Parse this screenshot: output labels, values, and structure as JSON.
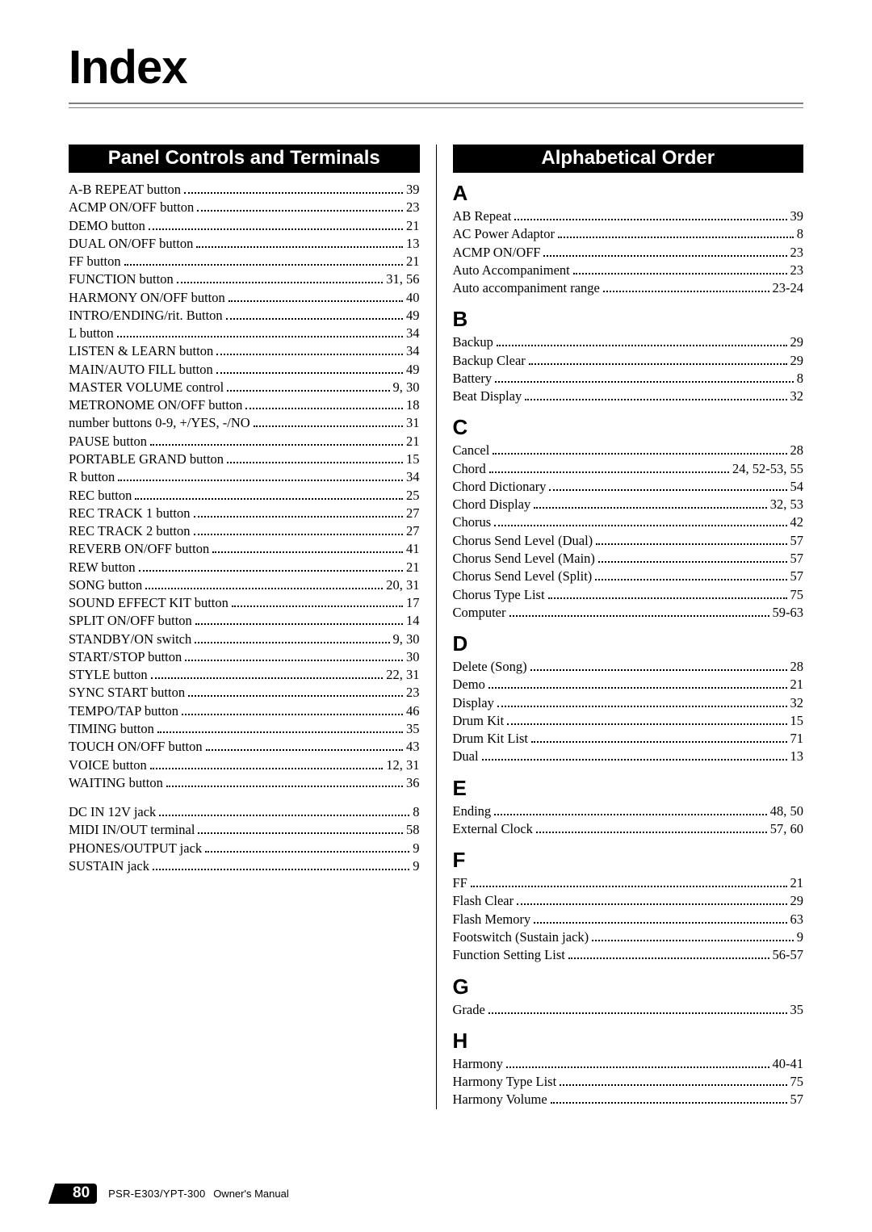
{
  "title": "Index",
  "footer": {
    "pageNumber": "80",
    "model": "PSR-E303/YPT-300",
    "manual": "Owner's Manual"
  },
  "left": {
    "header": "Panel Controls and Terminals",
    "group1": [
      {
        "term": "A-B REPEAT button",
        "page": "39"
      },
      {
        "term": "ACMP ON/OFF button",
        "page": "23"
      },
      {
        "term": "DEMO button",
        "page": "21"
      },
      {
        "term": "DUAL ON/OFF button",
        "page": "13"
      },
      {
        "term": "FF button",
        "page": "21"
      },
      {
        "term": "FUNCTION button",
        "page": "31, 56"
      },
      {
        "term": "HARMONY ON/OFF button",
        "page": "40"
      },
      {
        "term": "INTRO/ENDING/rit. Button",
        "page": "49"
      },
      {
        "term": "L button",
        "page": "34"
      },
      {
        "term": "LISTEN & LEARN button",
        "page": "34"
      },
      {
        "term": "MAIN/AUTO FILL button",
        "page": "49"
      },
      {
        "term": "MASTER VOLUME control",
        "page": "9, 30"
      },
      {
        "term": "METRONOME ON/OFF button",
        "page": "18"
      },
      {
        "term": "number buttons 0-9, +/YES, -/NO",
        "page": "31"
      },
      {
        "term": "PAUSE button",
        "page": "21"
      },
      {
        "term": "PORTABLE GRAND button",
        "page": "15"
      },
      {
        "term": "R button",
        "page": "34"
      },
      {
        "term": "REC button",
        "page": "25"
      },
      {
        "term": "REC TRACK 1 button",
        "page": "27"
      },
      {
        "term": "REC TRACK 2 button",
        "page": "27"
      },
      {
        "term": "REVERB ON/OFF button",
        "page": "41"
      },
      {
        "term": "REW button",
        "page": "21"
      },
      {
        "term": "SONG button",
        "page": "20, 31"
      },
      {
        "term": "SOUND EFFECT KIT button",
        "page": "17"
      },
      {
        "term": "SPLIT ON/OFF button",
        "page": "14"
      },
      {
        "term": "STANDBY/ON switch",
        "page": "9, 30"
      },
      {
        "term": "START/STOP button",
        "page": "30"
      },
      {
        "term": "STYLE button",
        "page": "22, 31"
      },
      {
        "term": "SYNC START button",
        "page": "23"
      },
      {
        "term": "TEMPO/TAP button",
        "page": "46"
      },
      {
        "term": "TIMING button",
        "page": "35"
      },
      {
        "term": "TOUCH ON/OFF button",
        "page": "43"
      },
      {
        "term": "VOICE button",
        "page": "12, 31"
      },
      {
        "term": "WAITING button",
        "page": "36"
      }
    ],
    "group2": [
      {
        "term": "DC IN 12V jack",
        "page": "8"
      },
      {
        "term": "MIDI IN/OUT terminal",
        "page": "58"
      },
      {
        "term": "PHONES/OUTPUT jack",
        "page": "9"
      },
      {
        "term": "SUSTAIN jack",
        "page": "9"
      }
    ]
  },
  "right": {
    "header": "Alphabetical Order",
    "sections": [
      {
        "letter": "A",
        "entries": [
          {
            "term": "AB Repeat",
            "page": "39"
          },
          {
            "term": "AC Power Adaptor",
            "page": "8"
          },
          {
            "term": "ACMP ON/OFF",
            "page": "23"
          },
          {
            "term": "Auto Accompaniment",
            "page": "23"
          },
          {
            "term": "Auto accompaniment range",
            "page": "23-24"
          }
        ]
      },
      {
        "letter": "B",
        "entries": [
          {
            "term": "Backup",
            "page": "29"
          },
          {
            "term": "Backup Clear",
            "page": "29"
          },
          {
            "term": "Battery",
            "page": "8"
          },
          {
            "term": "Beat Display",
            "page": "32"
          }
        ]
      },
      {
        "letter": "C",
        "entries": [
          {
            "term": "Cancel",
            "page": "28"
          },
          {
            "term": "Chord",
            "page": "24, 52-53, 55"
          },
          {
            "term": "Chord Dictionary",
            "page": "54"
          },
          {
            "term": "Chord Display",
            "page": "32, 53"
          },
          {
            "term": "Chorus",
            "page": "42"
          },
          {
            "term": "Chorus Send Level (Dual)",
            "page": "57"
          },
          {
            "term": "Chorus Send Level (Main)",
            "page": "57"
          },
          {
            "term": "Chorus Send Level (Split)",
            "page": "57"
          },
          {
            "term": "Chorus Type List",
            "page": "75"
          },
          {
            "term": "Computer",
            "page": "59-63"
          }
        ]
      },
      {
        "letter": "D",
        "entries": [
          {
            "term": "Delete (Song)",
            "page": "28"
          },
          {
            "term": "Demo",
            "page": "21"
          },
          {
            "term": "Display",
            "page": "32"
          },
          {
            "term": "Drum Kit",
            "page": "15"
          },
          {
            "term": "Drum Kit List",
            "page": "71"
          },
          {
            "term": "Dual",
            "page": "13"
          }
        ]
      },
      {
        "letter": "E",
        "entries": [
          {
            "term": "Ending",
            "page": "48, 50"
          },
          {
            "term": "External Clock",
            "page": "57, 60"
          }
        ]
      },
      {
        "letter": "F",
        "entries": [
          {
            "term": "FF",
            "page": "21"
          },
          {
            "term": "Flash Clear",
            "page": "29"
          },
          {
            "term": "Flash Memory",
            "page": "63"
          },
          {
            "term": "Footswitch (Sustain jack)",
            "page": "9"
          },
          {
            "term": "Function Setting List",
            "page": "56-57"
          }
        ]
      },
      {
        "letter": "G",
        "entries": [
          {
            "term": "Grade",
            "page": "35"
          }
        ]
      },
      {
        "letter": "H",
        "entries": [
          {
            "term": "Harmony",
            "page": "40-41"
          },
          {
            "term": "Harmony Type List",
            "page": "75"
          },
          {
            "term": "Harmony Volume",
            "page": "57"
          }
        ]
      }
    ]
  }
}
